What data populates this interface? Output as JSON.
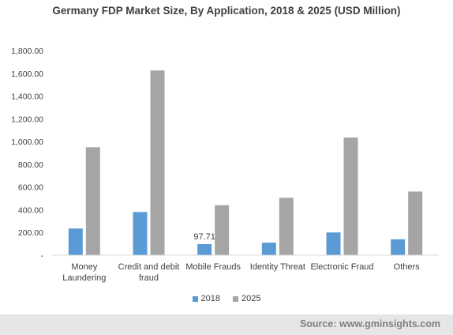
{
  "chart_data": {
    "type": "bar",
    "title": "Germany FDP Market Size, By Application, 2018 & 2025 (USD Million)",
    "categories": [
      [
        "Money",
        "Laundering"
      ],
      [
        "Credit and debit",
        "fraud"
      ],
      [
        "Mobile Frauds"
      ],
      [
        "Identity Threat"
      ],
      [
        "Electronic Fraud"
      ],
      [
        "Others"
      ]
    ],
    "series": [
      {
        "name": "2018",
        "values": [
          235,
          380,
          97.71,
          110,
          200,
          140
        ]
      },
      {
        "name": "2025",
        "values": [
          950,
          1625,
          440,
          505,
          1035,
          560
        ]
      }
    ],
    "ylim": [
      0,
      1800
    ],
    "yticks": [
      0,
      200,
      400,
      600,
      800,
      1000,
      1200,
      1400,
      1600,
      1800
    ],
    "ytick_labels": [
      "-",
      "200.00",
      "400.00",
      "600.00",
      "800.00",
      "1,000.00",
      "1,200.00",
      "1,400.00",
      "1,600.00",
      "1,800.00"
    ],
    "data_labels": [
      {
        "series": 0,
        "index": 2,
        "text": "97.71"
      }
    ],
    "grid": false,
    "legend": "bottom",
    "colors": {
      "2018": "#5b9bd5",
      "2025": "#a5a5a5"
    }
  },
  "footer": {
    "source": "Source: www.gminsights.com"
  }
}
